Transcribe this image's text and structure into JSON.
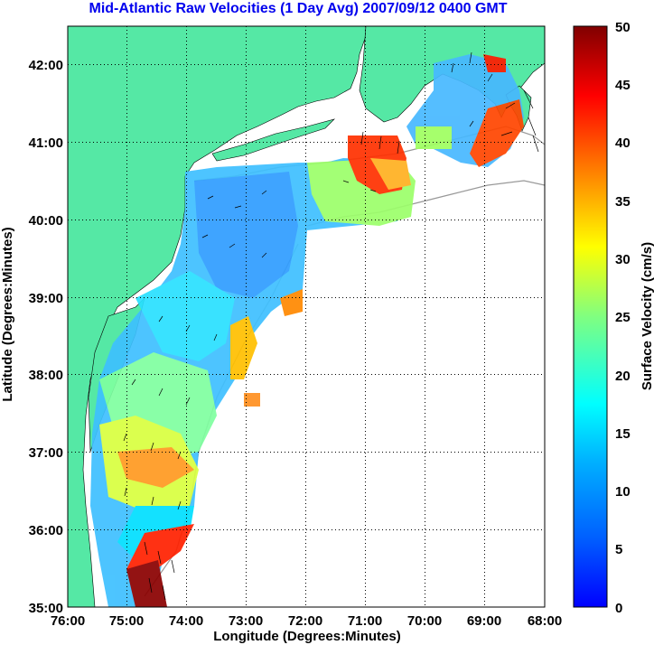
{
  "title": "Mid-Atlantic Raw Velocities (1 Day Avg) 2007/09/12 0400 GMT",
  "xlabel": "Longitude (Degrees:Minutes)",
  "ylabel": "Latitude (Degrees:Minutes)",
  "x_ticks": [
    "76:00",
    "75:00",
    "74:00",
    "73:00",
    "72:00",
    "71:00",
    "70:00",
    "69:00",
    "68:00"
  ],
  "y_ticks": [
    "42:00",
    "41:00",
    "40:00",
    "39:00",
    "38:00",
    "37:00",
    "36:00",
    "35:00"
  ],
  "colorbar": {
    "label": "Surface Velocity (cm/s)",
    "ticks": [
      "50",
      "45",
      "40",
      "35",
      "30",
      "25",
      "20",
      "15",
      "10",
      "5",
      "0"
    ],
    "range": [
      0,
      50
    ],
    "colormap": "jet"
  },
  "colors": {
    "land": "#55e8a5",
    "water": "#ffffff",
    "title": "#0000ee",
    "grid": "#000000",
    "isobath": "#999999"
  },
  "map_extent": {
    "lon": [
      -76,
      -68
    ],
    "lat": [
      35,
      42.5
    ]
  }
}
